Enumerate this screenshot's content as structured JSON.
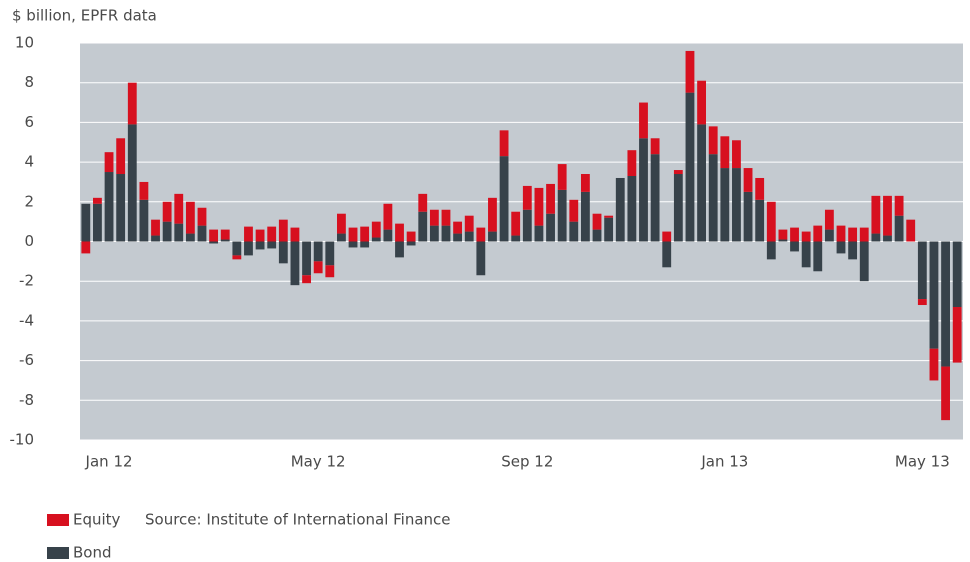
{
  "chart_data": {
    "type": "bar",
    "stacked": true,
    "ylabel": "$ billion, EPFR data",
    "annotation": "Source: Institute of International Finance",
    "categories": [
      null,
      null,
      "Jan 12",
      null,
      null,
      null,
      null,
      null,
      null,
      null,
      null,
      null,
      null,
      null,
      null,
      null,
      null,
      null,
      null,
      null,
      "May 12",
      null,
      null,
      null,
      null,
      null,
      null,
      null,
      null,
      null,
      null,
      null,
      null,
      null,
      null,
      null,
      null,
      null,
      "Sep 12",
      null,
      null,
      null,
      null,
      null,
      null,
      null,
      null,
      null,
      null,
      null,
      null,
      null,
      null,
      null,
      null,
      "Jan 13",
      null,
      null,
      null,
      null,
      null,
      null,
      null,
      null,
      null,
      null,
      null,
      null,
      null,
      null,
      null,
      null,
      "May 13",
      null,
      null,
      null
    ],
    "series": [
      {
        "name": "Equity",
        "color": "#d7101f",
        "values": [
          -0.6,
          0.3,
          1.0,
          1.8,
          2.1,
          0.9,
          0.8,
          1.0,
          1.5,
          1.6,
          0.9,
          0.6,
          0.5,
          -0.2,
          0.75,
          0.6,
          0.75,
          1.1,
          0.7,
          -0.4,
          -0.6,
          -0.6,
          1.0,
          0.7,
          0.75,
          0.8,
          1.3,
          0.9,
          0.5,
          0.9,
          0.8,
          0.8,
          0.6,
          0.8,
          0.7,
          1.7,
          1.3,
          1.2,
          1.2,
          1.9,
          1.5,
          1.3,
          1.1,
          0.9,
          0.8,
          0.1,
          0,
          1.3,
          1.8,
          0.8,
          0.5,
          0.2,
          2.1,
          2.2,
          1.4,
          1.6,
          1.4,
          1.2,
          1.1,
          2.0,
          0.5,
          0.7,
          0.5,
          0.8,
          1.0,
          0.8,
          0.7,
          0.7,
          1.9,
          2.0,
          1.0,
          1.1,
          -0.3,
          -1.6,
          -2.7,
          -2.8
        ]
      },
      {
        "name": "Bond",
        "color": "#37424a",
        "values": [
          1.9,
          1.9,
          3.5,
          3.4,
          5.9,
          2.1,
          0.3,
          1.0,
          0.9,
          0.4,
          0.8,
          -0.1,
          0.1,
          -0.7,
          -0.7,
          -0.4,
          -0.35,
          -1.1,
          -2.2,
          -1.7,
          -1.0,
          -1.2,
          0.4,
          -0.3,
          -0.3,
          0.2,
          0.6,
          -0.8,
          -0.2,
          1.5,
          0.8,
          0.8,
          0.4,
          0.5,
          -1.7,
          0.5,
          4.3,
          0.3,
          1.6,
          0.8,
          1.4,
          2.6,
          1.0,
          2.5,
          0.6,
          1.2,
          3.2,
          3.3,
          5.2,
          4.4,
          -1.3,
          3.4,
          7.5,
          5.9,
          4.4,
          3.7,
          3.7,
          2.5,
          2.1,
          -0.9,
          0.1,
          -0.5,
          -1.3,
          -1.5,
          0.6,
          -0.6,
          -0.9,
          -2.0,
          0.4,
          0.3,
          1.3,
          0,
          -2.9,
          -5.4,
          -6.3,
          -3.3
        ]
      }
    ],
    "ylim": [
      -10,
      10
    ],
    "yticks": [
      -10,
      -8,
      -6,
      -4,
      -2,
      0,
      2,
      4,
      6,
      8,
      10
    ],
    "grid": true,
    "background": "#c4cad0"
  }
}
